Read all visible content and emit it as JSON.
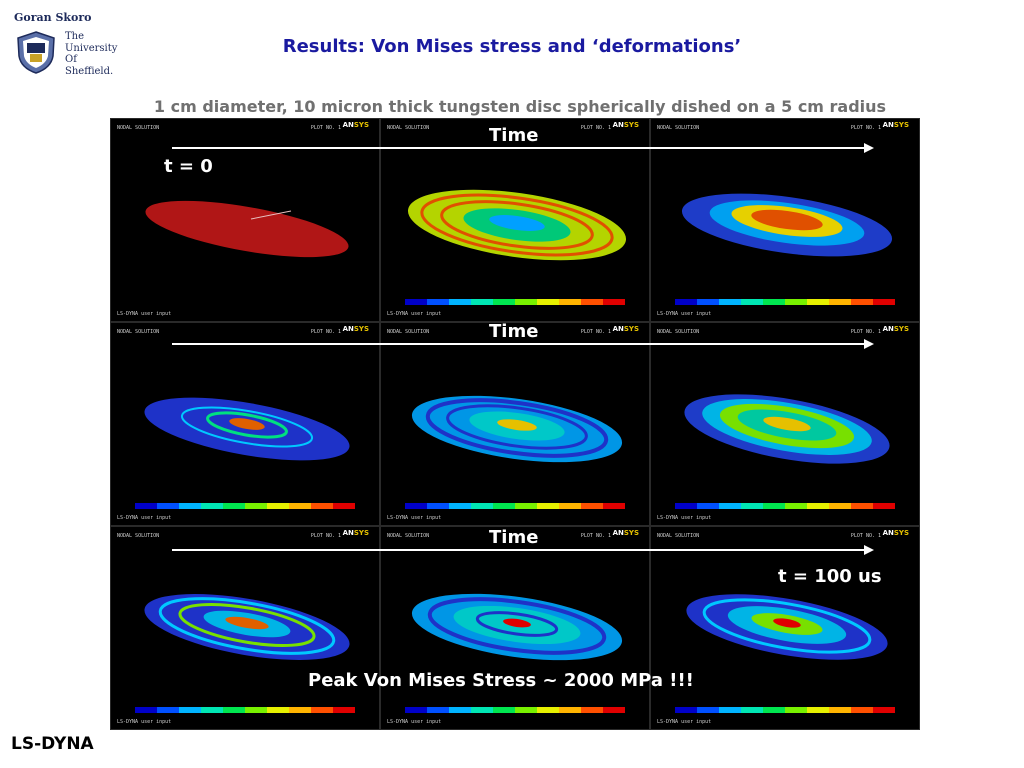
{
  "header": {
    "author": "Goran Skoro",
    "university_lines": [
      "The",
      "University",
      "Of",
      "Sheffield."
    ],
    "title": "Results: Von Mises stress and ‘deformations’",
    "subtitle": "1 cm diameter, 10 micron thick tungsten disc spherically dished on a 5 cm radius"
  },
  "panels": {
    "header_text": "NODAL SOLUTION",
    "plot_text": "PLOT NO.  1",
    "logo_text": "AN",
    "logo_accent": "SYS",
    "footer_text": "LS-DYNA user input"
  },
  "timeline": {
    "label": "Time",
    "start_label": "t = 0",
    "end_label": "t = 100 us"
  },
  "peak_text": "Peak Von Mises Stress ~ 2000 MPa !!!",
  "footer": {
    "software": "LS-DYNA"
  },
  "colormap": [
    "#0000c8",
    "#0050ff",
    "#00b4ff",
    "#00e6b4",
    "#00e650",
    "#78f000",
    "#e6f000",
    "#ffb400",
    "#ff5000",
    "#e00000"
  ]
}
